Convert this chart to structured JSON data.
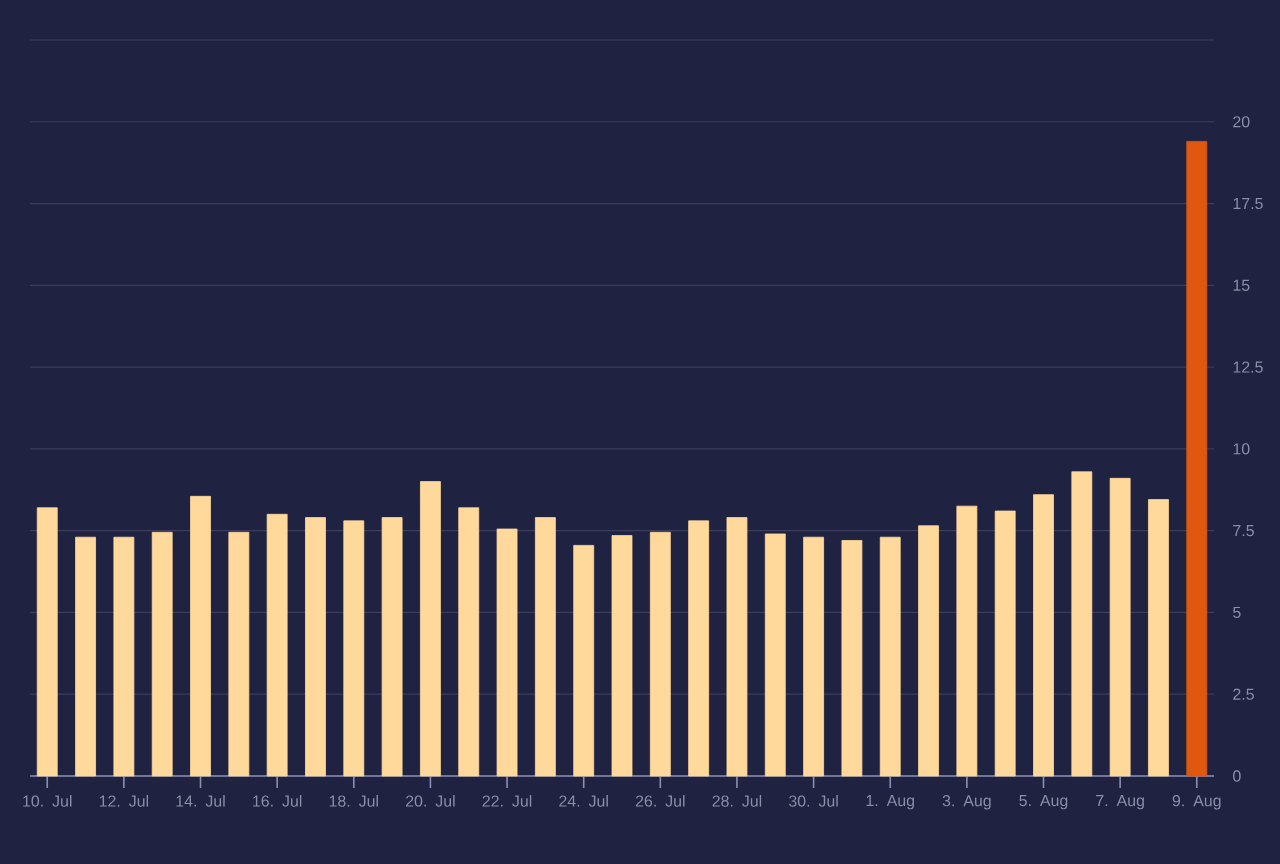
{
  "chart_data": {
    "type": "bar",
    "categories": [
      "10. Jul",
      null,
      "12. Jul",
      null,
      "14. Jul",
      null,
      "16. Jul",
      null,
      "18. Jul",
      null,
      "20. Jul",
      null,
      "22. Jul",
      null,
      "24. Jul",
      null,
      "26. Jul",
      null,
      "28. Jul",
      null,
      "30. Jul",
      null,
      "1. Aug",
      null,
      "3. Aug",
      null,
      "5. Aug",
      null,
      "7. Aug",
      null,
      "9. Aug"
    ],
    "values": [
      8.2,
      7.3,
      7.3,
      7.45,
      8.55,
      7.45,
      8.0,
      7.9,
      7.8,
      7.9,
      9.0,
      8.2,
      7.55,
      7.9,
      7.05,
      7.35,
      7.45,
      7.8,
      7.9,
      7.4,
      7.3,
      7.2,
      7.3,
      7.65,
      8.25,
      8.1,
      8.6,
      9.3,
      9.1,
      8.45,
      19.4
    ],
    "colors": [
      "#ffd99b",
      "#ffd99b",
      "#ffd99b",
      "#ffd99b",
      "#ffd99b",
      "#ffd99b",
      "#ffd99b",
      "#ffd99b",
      "#ffd99b",
      "#ffd99b",
      "#ffd99b",
      "#ffd99b",
      "#ffd99b",
      "#ffd99b",
      "#ffd99b",
      "#ffd99b",
      "#ffd99b",
      "#ffd99b",
      "#ffd99b",
      "#ffd99b",
      "#ffd99b",
      "#ffd99b",
      "#ffd99b",
      "#ffd99b",
      "#ffd99b",
      "#ffd99b",
      "#ffd99b",
      "#ffd99b",
      "#ffd99b",
      "#ffd99b",
      "#e0580f"
    ],
    "ylim": [
      0,
      22.5
    ],
    "yticks": [
      0,
      2.5,
      5,
      7.5,
      10,
      12.5,
      15,
      17.5,
      20,
      {
        "value": 22.5,
        "label": null
      }
    ],
    "grid": "y"
  }
}
